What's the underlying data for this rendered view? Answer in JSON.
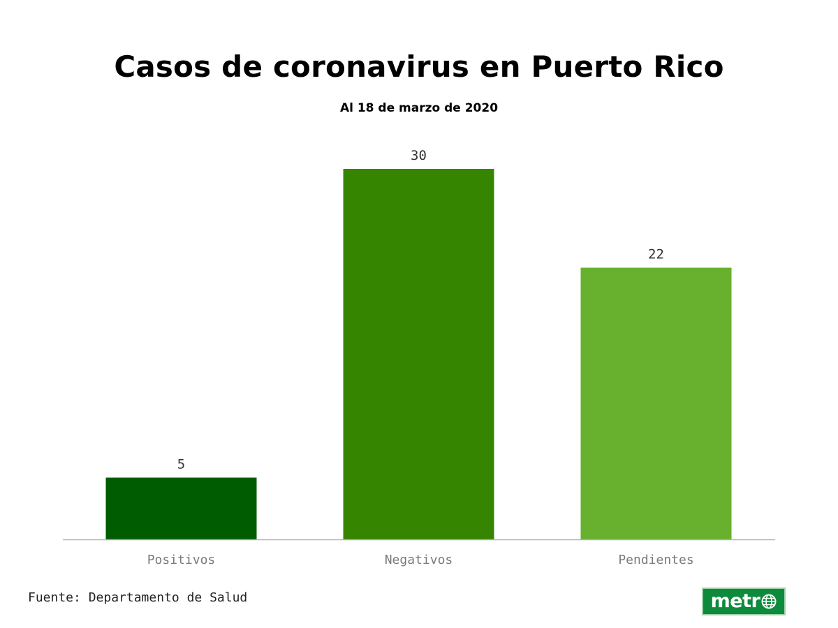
{
  "header": {
    "title": "Casos de coronavirus en Puerto Rico",
    "subtitle": "Al 18 de marzo de 2020"
  },
  "footer": {
    "source": "Fuente: Departamento de Salud",
    "logo_text": "metr",
    "logo_icon": "globe-icon",
    "logo_color": "#0e8a3c"
  },
  "chart_data": {
    "type": "bar",
    "title": "Casos de coronavirus en Puerto Rico",
    "subtitle": "Al 18 de marzo de 2020",
    "categories": [
      "Positivos",
      "Negativos",
      "Pendientes"
    ],
    "values": [
      5,
      30,
      22
    ],
    "colors": [
      "#005c00",
      "#368501",
      "#67b12f"
    ],
    "xlabel": "",
    "ylabel": "",
    "ylim": [
      0,
      30
    ],
    "grid": false,
    "legend": "none",
    "data_labels": true
  }
}
